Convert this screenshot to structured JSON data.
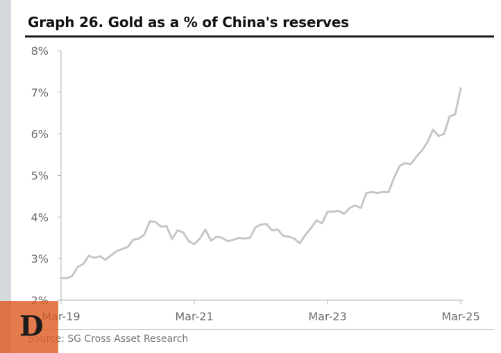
{
  "header": {
    "title": "Graph 26. Gold as a % of China's reserves"
  },
  "footer": {
    "source": "Source: SG Cross Asset Research"
  },
  "logo": {
    "letter": "D",
    "color": "#dd5e24"
  },
  "chart_data": {
    "type": "line",
    "title": "Graph 26. Gold as a % of China's reserves",
    "xlabel": "",
    "ylabel": "",
    "x_range": [
      "2019-03",
      "2025-03"
    ],
    "ylim": [
      2,
      8
    ],
    "y_ticks": [
      2,
      3,
      4,
      5,
      6,
      7,
      8
    ],
    "y_tick_labels": [
      "2%",
      "3%",
      "4%",
      "5%",
      "6%",
      "7%",
      "8%"
    ],
    "x_ticks": [
      "2019-03",
      "2021-03",
      "2023-03",
      "2025-03"
    ],
    "x_tick_labels": [
      "Mar-19",
      "Mar-21",
      "Mar-23",
      "Mar-25"
    ],
    "grid": false,
    "line_color": "#c6c6c6",
    "series": [
      {
        "x": [
          "2019-03",
          "2019-04",
          "2019-05",
          "2019-06",
          "2019-07",
          "2019-08",
          "2019-09",
          "2019-10",
          "2019-11",
          "2019-12",
          "2020-01",
          "2020-02",
          "2020-03",
          "2020-04",
          "2020-05",
          "2020-06",
          "2020-07",
          "2020-08",
          "2020-09",
          "2020-10",
          "2020-11",
          "2020-12",
          "2021-01",
          "2021-02",
          "2021-03",
          "2021-04",
          "2021-05",
          "2021-06",
          "2021-07",
          "2021-08",
          "2021-09",
          "2021-10",
          "2021-11",
          "2021-12",
          "2022-01",
          "2022-02",
          "2022-03",
          "2022-04",
          "2022-05",
          "2022-06",
          "2022-07",
          "2022-08",
          "2022-09",
          "2022-10",
          "2022-11",
          "2022-12",
          "2023-01",
          "2023-02",
          "2023-03",
          "2023-04",
          "2023-05",
          "2023-06",
          "2023-07",
          "2023-08",
          "2023-09",
          "2023-10",
          "2023-11",
          "2023-12",
          "2024-01",
          "2024-02",
          "2024-03",
          "2024-04",
          "2024-05",
          "2024-06",
          "2024-07",
          "2024-08",
          "2024-09",
          "2024-10",
          "2024-11",
          "2024-12",
          "2025-01",
          "2025-02",
          "2025-03"
        ],
        "values": [
          2.53,
          2.53,
          2.58,
          2.8,
          2.87,
          3.07,
          3.02,
          3.06,
          2.97,
          3.08,
          3.18,
          3.23,
          3.28,
          3.45,
          3.48,
          3.58,
          3.9,
          3.88,
          3.77,
          3.78,
          3.47,
          3.68,
          3.63,
          3.42,
          3.35,
          3.48,
          3.7,
          3.43,
          3.53,
          3.5,
          3.42,
          3.45,
          3.5,
          3.48,
          3.5,
          3.75,
          3.82,
          3.83,
          3.68,
          3.7,
          3.55,
          3.53,
          3.48,
          3.37,
          3.57,
          3.73,
          3.92,
          3.85,
          4.13,
          4.13,
          4.15,
          4.08,
          4.22,
          4.28,
          4.22,
          4.58,
          4.6,
          4.58,
          4.6,
          4.6,
          4.95,
          5.23,
          5.3,
          5.27,
          5.45,
          5.6,
          5.8,
          6.1,
          5.95,
          6.0,
          6.42,
          6.47,
          7.1
        ]
      }
    ]
  }
}
